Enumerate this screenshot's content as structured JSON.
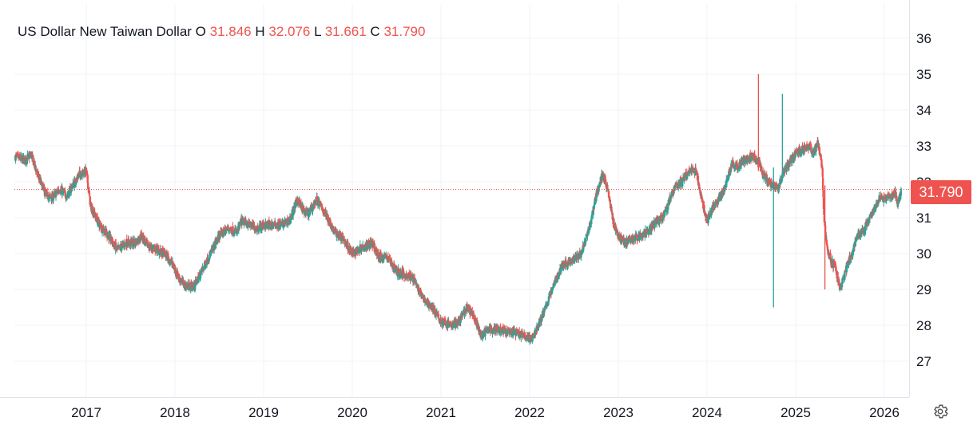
{
  "legend": {
    "symbol": "US Dollar New Taiwan Dollar",
    "open_label": "O",
    "open": "31.846",
    "high_label": "H",
    "high": "32.076",
    "low_label": "L",
    "low": "31.661",
    "close_label": "C",
    "close": "31.790"
  },
  "last_price_label": "31.790",
  "colors": {
    "up": "#26a69a",
    "down": "#ef5350",
    "grid": "#f0f3fa",
    "text": "#131722"
  },
  "icons": {
    "settings": "gear-icon"
  },
  "chart_data": {
    "type": "candlestick",
    "title": "US Dollar New Taiwan Dollar",
    "x_ticks": [
      "2017",
      "2018",
      "2019",
      "2020",
      "2021",
      "2022",
      "2023",
      "2024",
      "2025",
      "2026"
    ],
    "y_ticks": [
      27,
      28,
      29,
      30,
      31,
      32,
      33,
      34,
      35,
      36
    ],
    "ylim": [
      26,
      37
    ],
    "xlim": [
      2016.2,
      2026.3
    ],
    "grid": true,
    "price_axis": "right",
    "last_price": 31.79,
    "wicks": [
      {
        "x": 2024.58,
        "low": 32.3,
        "high": 35.0,
        "color": "down"
      },
      {
        "x": 2024.75,
        "low": 28.5,
        "high": 32.4,
        "color": "up"
      },
      {
        "x": 2024.85,
        "low": 32.1,
        "high": 34.45,
        "color": "up"
      },
      {
        "x": 2025.33,
        "low": 29.0,
        "high": 31.9,
        "color": "down"
      }
    ],
    "series": [
      {
        "name": "USD/TWD",
        "points": [
          [
            2016.2,
            32.7
          ],
          [
            2016.3,
            32.6
          ],
          [
            2016.38,
            32.75
          ],
          [
            2016.45,
            32.2
          ],
          [
            2016.55,
            31.6
          ],
          [
            2016.62,
            31.55
          ],
          [
            2016.7,
            31.8
          ],
          [
            2016.78,
            31.6
          ],
          [
            2016.85,
            31.9
          ],
          [
            2016.92,
            32.2
          ],
          [
            2017.0,
            32.3
          ],
          [
            2017.05,
            31.3
          ],
          [
            2017.15,
            30.8
          ],
          [
            2017.25,
            30.5
          ],
          [
            2017.35,
            30.1
          ],
          [
            2017.45,
            30.3
          ],
          [
            2017.55,
            30.3
          ],
          [
            2017.62,
            30.5
          ],
          [
            2017.7,
            30.2
          ],
          [
            2017.8,
            30.1
          ],
          [
            2017.88,
            30.0
          ],
          [
            2017.95,
            29.8
          ],
          [
            2018.05,
            29.3
          ],
          [
            2018.12,
            29.1
          ],
          [
            2018.22,
            29.1
          ],
          [
            2018.3,
            29.5
          ],
          [
            2018.4,
            30.0
          ],
          [
            2018.5,
            30.5
          ],
          [
            2018.6,
            30.7
          ],
          [
            2018.7,
            30.6
          ],
          [
            2018.75,
            30.9
          ],
          [
            2018.85,
            30.8
          ],
          [
            2018.92,
            30.7
          ],
          [
            2019.0,
            30.8
          ],
          [
            2019.1,
            30.8
          ],
          [
            2019.2,
            30.8
          ],
          [
            2019.3,
            30.95
          ],
          [
            2019.38,
            31.5
          ],
          [
            2019.45,
            31.2
          ],
          [
            2019.5,
            31.1
          ],
          [
            2019.6,
            31.5
          ],
          [
            2019.7,
            31.1
          ],
          [
            2019.8,
            30.6
          ],
          [
            2019.9,
            30.4
          ],
          [
            2020.0,
            30.0
          ],
          [
            2020.12,
            30.2
          ],
          [
            2020.22,
            30.3
          ],
          [
            2020.3,
            29.9
          ],
          [
            2020.4,
            29.9
          ],
          [
            2020.5,
            29.5
          ],
          [
            2020.6,
            29.4
          ],
          [
            2020.7,
            29.3
          ],
          [
            2020.78,
            28.8
          ],
          [
            2020.9,
            28.5
          ],
          [
            2021.0,
            28.1
          ],
          [
            2021.12,
            28.0
          ],
          [
            2021.2,
            28.1
          ],
          [
            2021.3,
            28.5
          ],
          [
            2021.38,
            28.2
          ],
          [
            2021.45,
            27.7
          ],
          [
            2021.55,
            27.9
          ],
          [
            2021.65,
            27.9
          ],
          [
            2021.75,
            27.8
          ],
          [
            2021.85,
            27.8
          ],
          [
            2021.95,
            27.7
          ],
          [
            2022.02,
            27.6
          ],
          [
            2022.1,
            28.0
          ],
          [
            2022.18,
            28.5
          ],
          [
            2022.28,
            29.2
          ],
          [
            2022.38,
            29.7
          ],
          [
            2022.48,
            29.8
          ],
          [
            2022.58,
            30.0
          ],
          [
            2022.68,
            30.8
          ],
          [
            2022.75,
            31.6
          ],
          [
            2022.82,
            32.2
          ],
          [
            2022.88,
            31.8
          ],
          [
            2022.95,
            30.8
          ],
          [
            2023.0,
            30.5
          ],
          [
            2023.08,
            30.3
          ],
          [
            2023.15,
            30.4
          ],
          [
            2023.25,
            30.5
          ],
          [
            2023.32,
            30.6
          ],
          [
            2023.4,
            30.8
          ],
          [
            2023.5,
            31.0
          ],
          [
            2023.58,
            31.5
          ],
          [
            2023.65,
            31.9
          ],
          [
            2023.72,
            32.0
          ],
          [
            2023.8,
            32.3
          ],
          [
            2023.88,
            32.3
          ],
          [
            2023.95,
            31.4
          ],
          [
            2024.0,
            30.9
          ],
          [
            2024.05,
            31.2
          ],
          [
            2024.12,
            31.5
          ],
          [
            2024.2,
            31.8
          ],
          [
            2024.28,
            32.5
          ],
          [
            2024.35,
            32.4
          ],
          [
            2024.42,
            32.6
          ],
          [
            2024.5,
            32.7
          ],
          [
            2024.58,
            32.6
          ],
          [
            2024.62,
            32.3
          ],
          [
            2024.68,
            32.0
          ],
          [
            2024.75,
            31.9
          ],
          [
            2024.8,
            31.8
          ],
          [
            2024.85,
            32.2
          ],
          [
            2024.92,
            32.5
          ],
          [
            2025.0,
            32.8
          ],
          [
            2025.08,
            32.9
          ],
          [
            2025.15,
            33.0
          ],
          [
            2025.2,
            32.8
          ],
          [
            2025.25,
            33.1
          ],
          [
            2025.3,
            32.4
          ],
          [
            2025.32,
            31.0
          ],
          [
            2025.35,
            30.2
          ],
          [
            2025.4,
            29.8
          ],
          [
            2025.45,
            29.6
          ],
          [
            2025.5,
            29.0
          ],
          [
            2025.55,
            29.4
          ],
          [
            2025.6,
            29.8
          ],
          [
            2025.65,
            30.1
          ],
          [
            2025.7,
            30.5
          ],
          [
            2025.75,
            30.6
          ],
          [
            2025.82,
            30.9
          ],
          [
            2025.88,
            31.2
          ],
          [
            2025.95,
            31.6
          ],
          [
            2026.02,
            31.5
          ],
          [
            2026.08,
            31.6
          ],
          [
            2026.12,
            31.7
          ],
          [
            2026.15,
            31.4
          ],
          [
            2026.19,
            31.79
          ]
        ]
      }
    ]
  }
}
